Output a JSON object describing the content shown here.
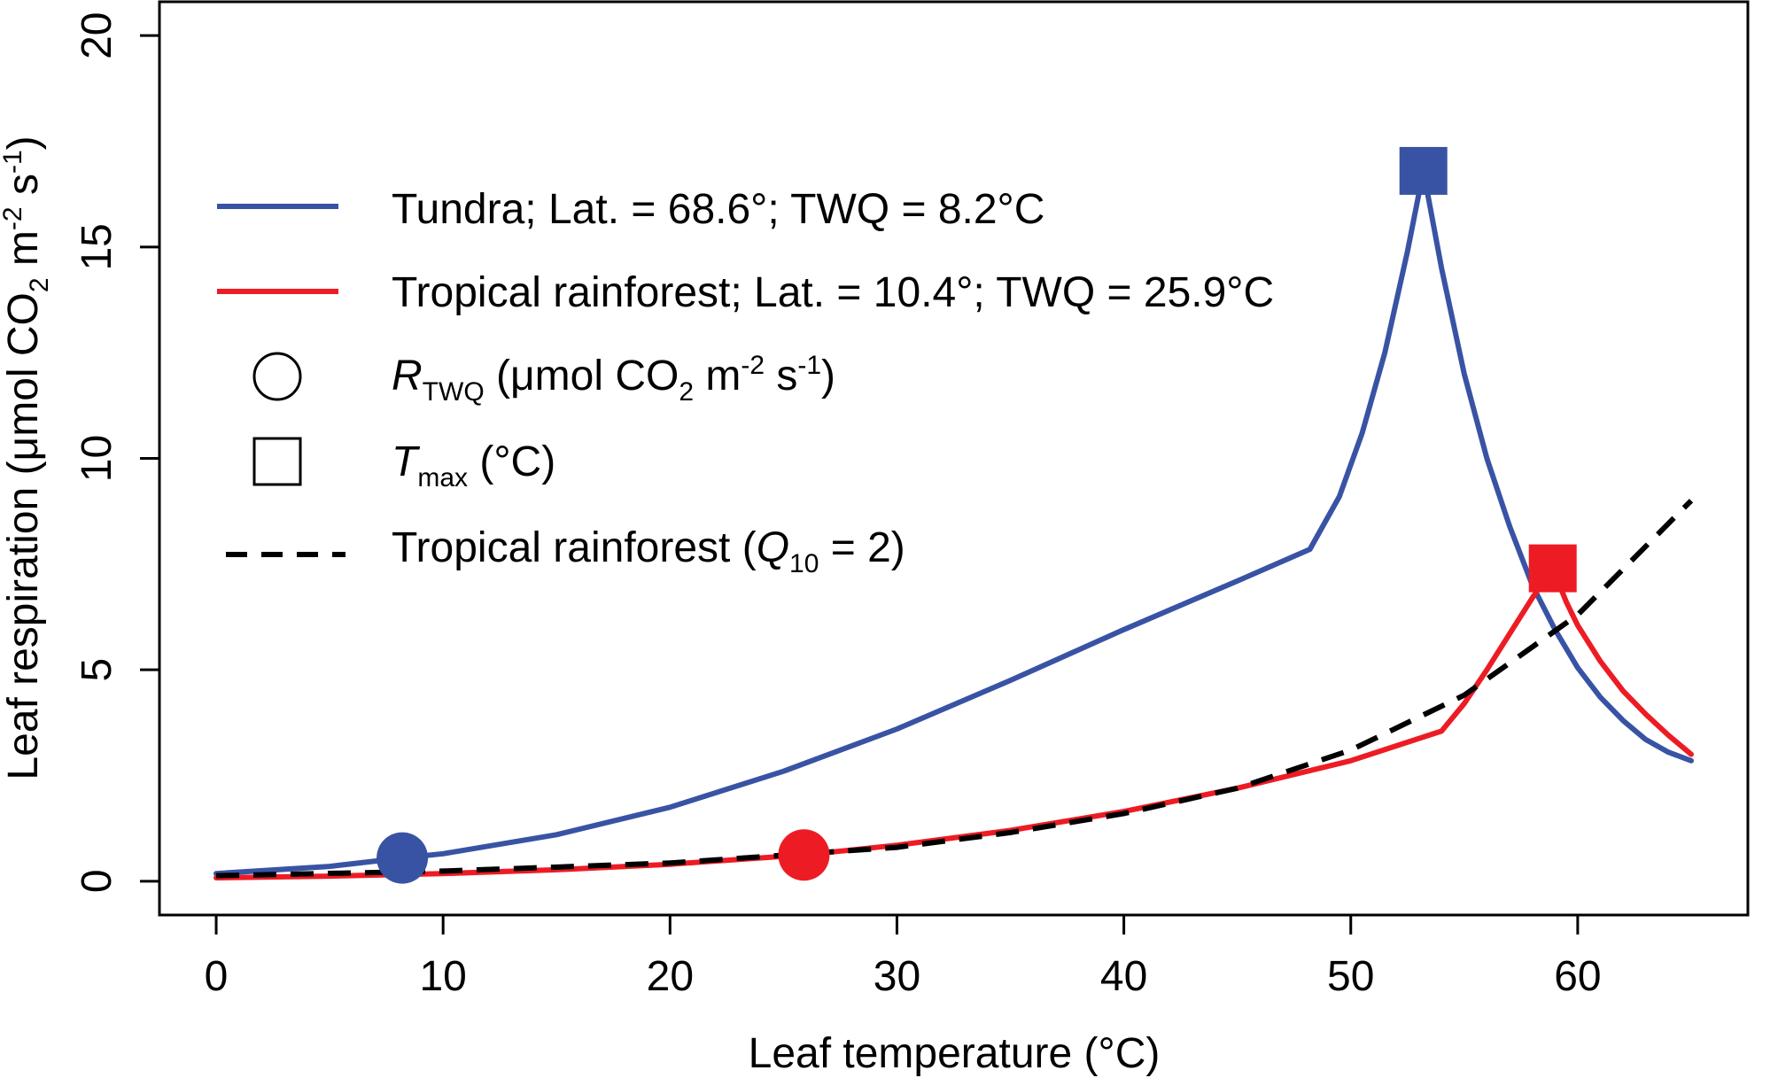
{
  "chart_data": {
    "type": "line",
    "xlabel": "Leaf temperature (°C)",
    "ylabel": {
      "part1": "Leaf respiration (μmol CO",
      "sub": "2",
      "part2": " m",
      "sup1": "-2",
      "part3": " s",
      "sup2": "-1",
      "part4": ")"
    },
    "xlim": [
      -2.5,
      67.5
    ],
    "ylim": [
      -0.8,
      20.8
    ],
    "xticks": [
      0,
      10,
      20,
      30,
      40,
      50,
      60
    ],
    "yticks": [
      0,
      5,
      10,
      15,
      20
    ],
    "grid": false,
    "legend_position": "top-left",
    "series": [
      {
        "name": "Tundra; Lat. = 68.6°; TWQ = 8.2°C",
        "color": "#3953a4",
        "style": "solid",
        "x": [
          0,
          5,
          8.2,
          10,
          15,
          20,
          25,
          30,
          35,
          40,
          45,
          48.2,
          49.5,
          50.5,
          51.5,
          52.5,
          53.2,
          54,
          55,
          56,
          57,
          58,
          59,
          60,
          61,
          62,
          63,
          64,
          65
        ],
        "y": [
          0.18,
          0.35,
          0.55,
          0.65,
          1.1,
          1.75,
          2.6,
          3.6,
          4.75,
          5.95,
          7.1,
          7.85,
          9.1,
          10.6,
          12.5,
          14.9,
          16.8,
          14.5,
          12.0,
          10.0,
          8.4,
          7.0,
          5.95,
          5.05,
          4.35,
          3.8,
          3.35,
          3.05,
          2.85
        ]
      },
      {
        "name": "Tropical rainforest; Lat. = 10.4°; TWQ = 25.9°C",
        "color": "#ed1c24",
        "style": "solid",
        "x": [
          0,
          5,
          10,
          15,
          20,
          25.9,
          30,
          35,
          40,
          45,
          50,
          54,
          55,
          56,
          57,
          58,
          58.9,
          59.5,
          60,
          61,
          62,
          63,
          64,
          65
        ],
        "y": [
          0.08,
          0.12,
          0.18,
          0.27,
          0.4,
          0.62,
          0.85,
          1.2,
          1.65,
          2.2,
          2.85,
          3.55,
          4.2,
          5.0,
          5.85,
          6.7,
          7.4,
          6.6,
          6.05,
          5.2,
          4.5,
          3.95,
          3.45,
          3.0
        ]
      },
      {
        "name": "Tropical rainforest (Q10 = 2)",
        "color": "#000000",
        "style": "dashed",
        "x": [
          0,
          10,
          20,
          30,
          35,
          40,
          45,
          50,
          55,
          60,
          65
        ],
        "y": [
          0.13,
          0.24,
          0.43,
          0.8,
          1.15,
          1.6,
          2.2,
          3.1,
          4.4,
          6.3,
          9.0
        ]
      }
    ],
    "markers": [
      {
        "type": "R_TWQ",
        "shape": "circle",
        "series": "Tundra",
        "x": 8.2,
        "y": 0.55,
        "color": "#3953a4"
      },
      {
        "type": "R_TWQ",
        "shape": "circle",
        "series": "Tropical rainforest",
        "x": 25.9,
        "y": 0.62,
        "color": "#ed1c24"
      },
      {
        "type": "T_max",
        "shape": "square",
        "series": "Tundra",
        "x": 53.2,
        "y": 16.8,
        "color": "#3953a4"
      },
      {
        "type": "T_max",
        "shape": "square",
        "series": "Tropical rainforest",
        "x": 58.9,
        "y": 7.4,
        "color": "#ed1c24"
      }
    ],
    "legend": {
      "tundra": "Tundra; Lat. = 68.6°; TWQ = 8.2°C",
      "tropical": "Tropical rainforest; Lat. = 10.4°; TWQ = 25.9°C",
      "rtwq": {
        "base": "R",
        "sub": "TWQ",
        "rest1": " (μmol CO",
        "sub2": "2",
        "rest2": " m",
        "sup1": "-2",
        "rest3": " s",
        "sup2": "-1",
        "rest4": ")"
      },
      "tmax": {
        "base": "T",
        "sub": "max",
        "rest": " (°C)"
      },
      "q10": {
        "rest1": "Tropical rainforest (",
        "base": "Q",
        "sub": "10",
        "rest2": " = 2)"
      }
    }
  }
}
